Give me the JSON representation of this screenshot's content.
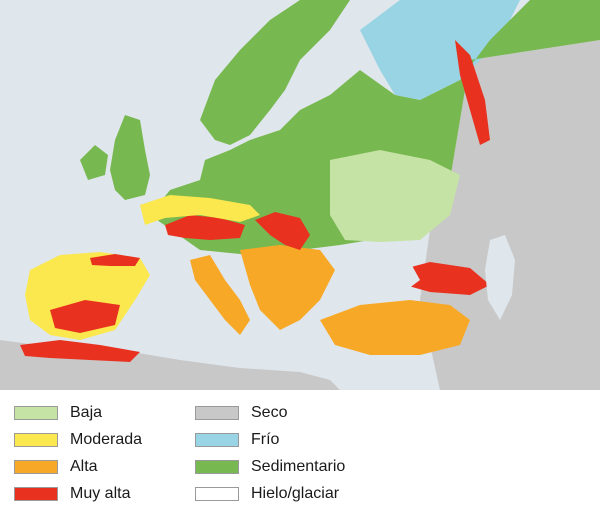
{
  "legend": {
    "col1": [
      {
        "label": "Baja",
        "color": "#c5e3a4"
      },
      {
        "label": "Moderada",
        "color": "#fbe84e"
      },
      {
        "label": "Alta",
        "color": "#f8a827"
      },
      {
        "label": "Muy alta",
        "color": "#e8321f"
      }
    ],
    "col2": [
      {
        "label": "Seco",
        "color": "#c8c8c8"
      },
      {
        "label": "Frío",
        "color": "#98d4e4"
      },
      {
        "label": "Sedimentario",
        "color": "#78b850"
      },
      {
        "label": "Hielo/glaciar",
        "color": "#ffffff"
      }
    ]
  },
  "map_colors": {
    "sea": "#dfe6ec",
    "land_default": "#78b850",
    "dry": "#c8c8c8",
    "cold": "#98d4e4",
    "low": "#c5e3a4",
    "moderate": "#fbe84e",
    "high": "#f8a827",
    "very_high": "#e8321f"
  }
}
